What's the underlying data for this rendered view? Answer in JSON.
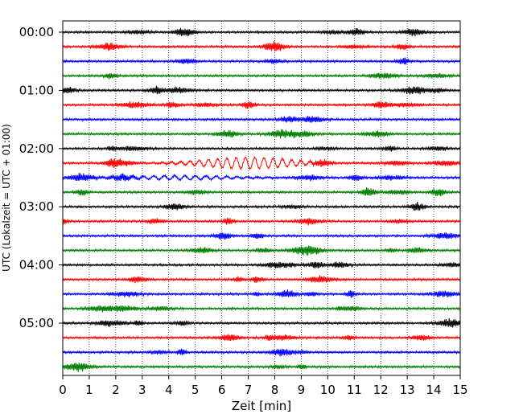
{
  "chart_data": {
    "type": "line",
    "title": "",
    "xlabel": "Zeit  [min]",
    "ylabel": "UTC (Lokalzeit = UTC + 01:00)",
    "xlim": [
      0,
      15
    ],
    "x_ticks": [
      "0",
      "1",
      "2",
      "3",
      "4",
      "5",
      "6",
      "7",
      "8",
      "9",
      "10",
      "11",
      "12",
      "13",
      "14",
      "15"
    ],
    "y_ticks": [
      "00:00",
      "01:00",
      "02:00",
      "03:00",
      "04:00",
      "05:00"
    ],
    "grid": "vertical dotted",
    "colors": [
      "#000000",
      "#ff0000",
      "#0000ff",
      "#007f00"
    ],
    "trace_row_count": 24,
    "traces_note": "seismogram helicorder: one 15-minute trace per row, starting 00:00 UTC",
    "event": {
      "row_start_time": "02:15",
      "x_min_start": 4.0,
      "x_min_end": 9.0,
      "description": "larger-amplitude long-period waves in red trace"
    }
  }
}
